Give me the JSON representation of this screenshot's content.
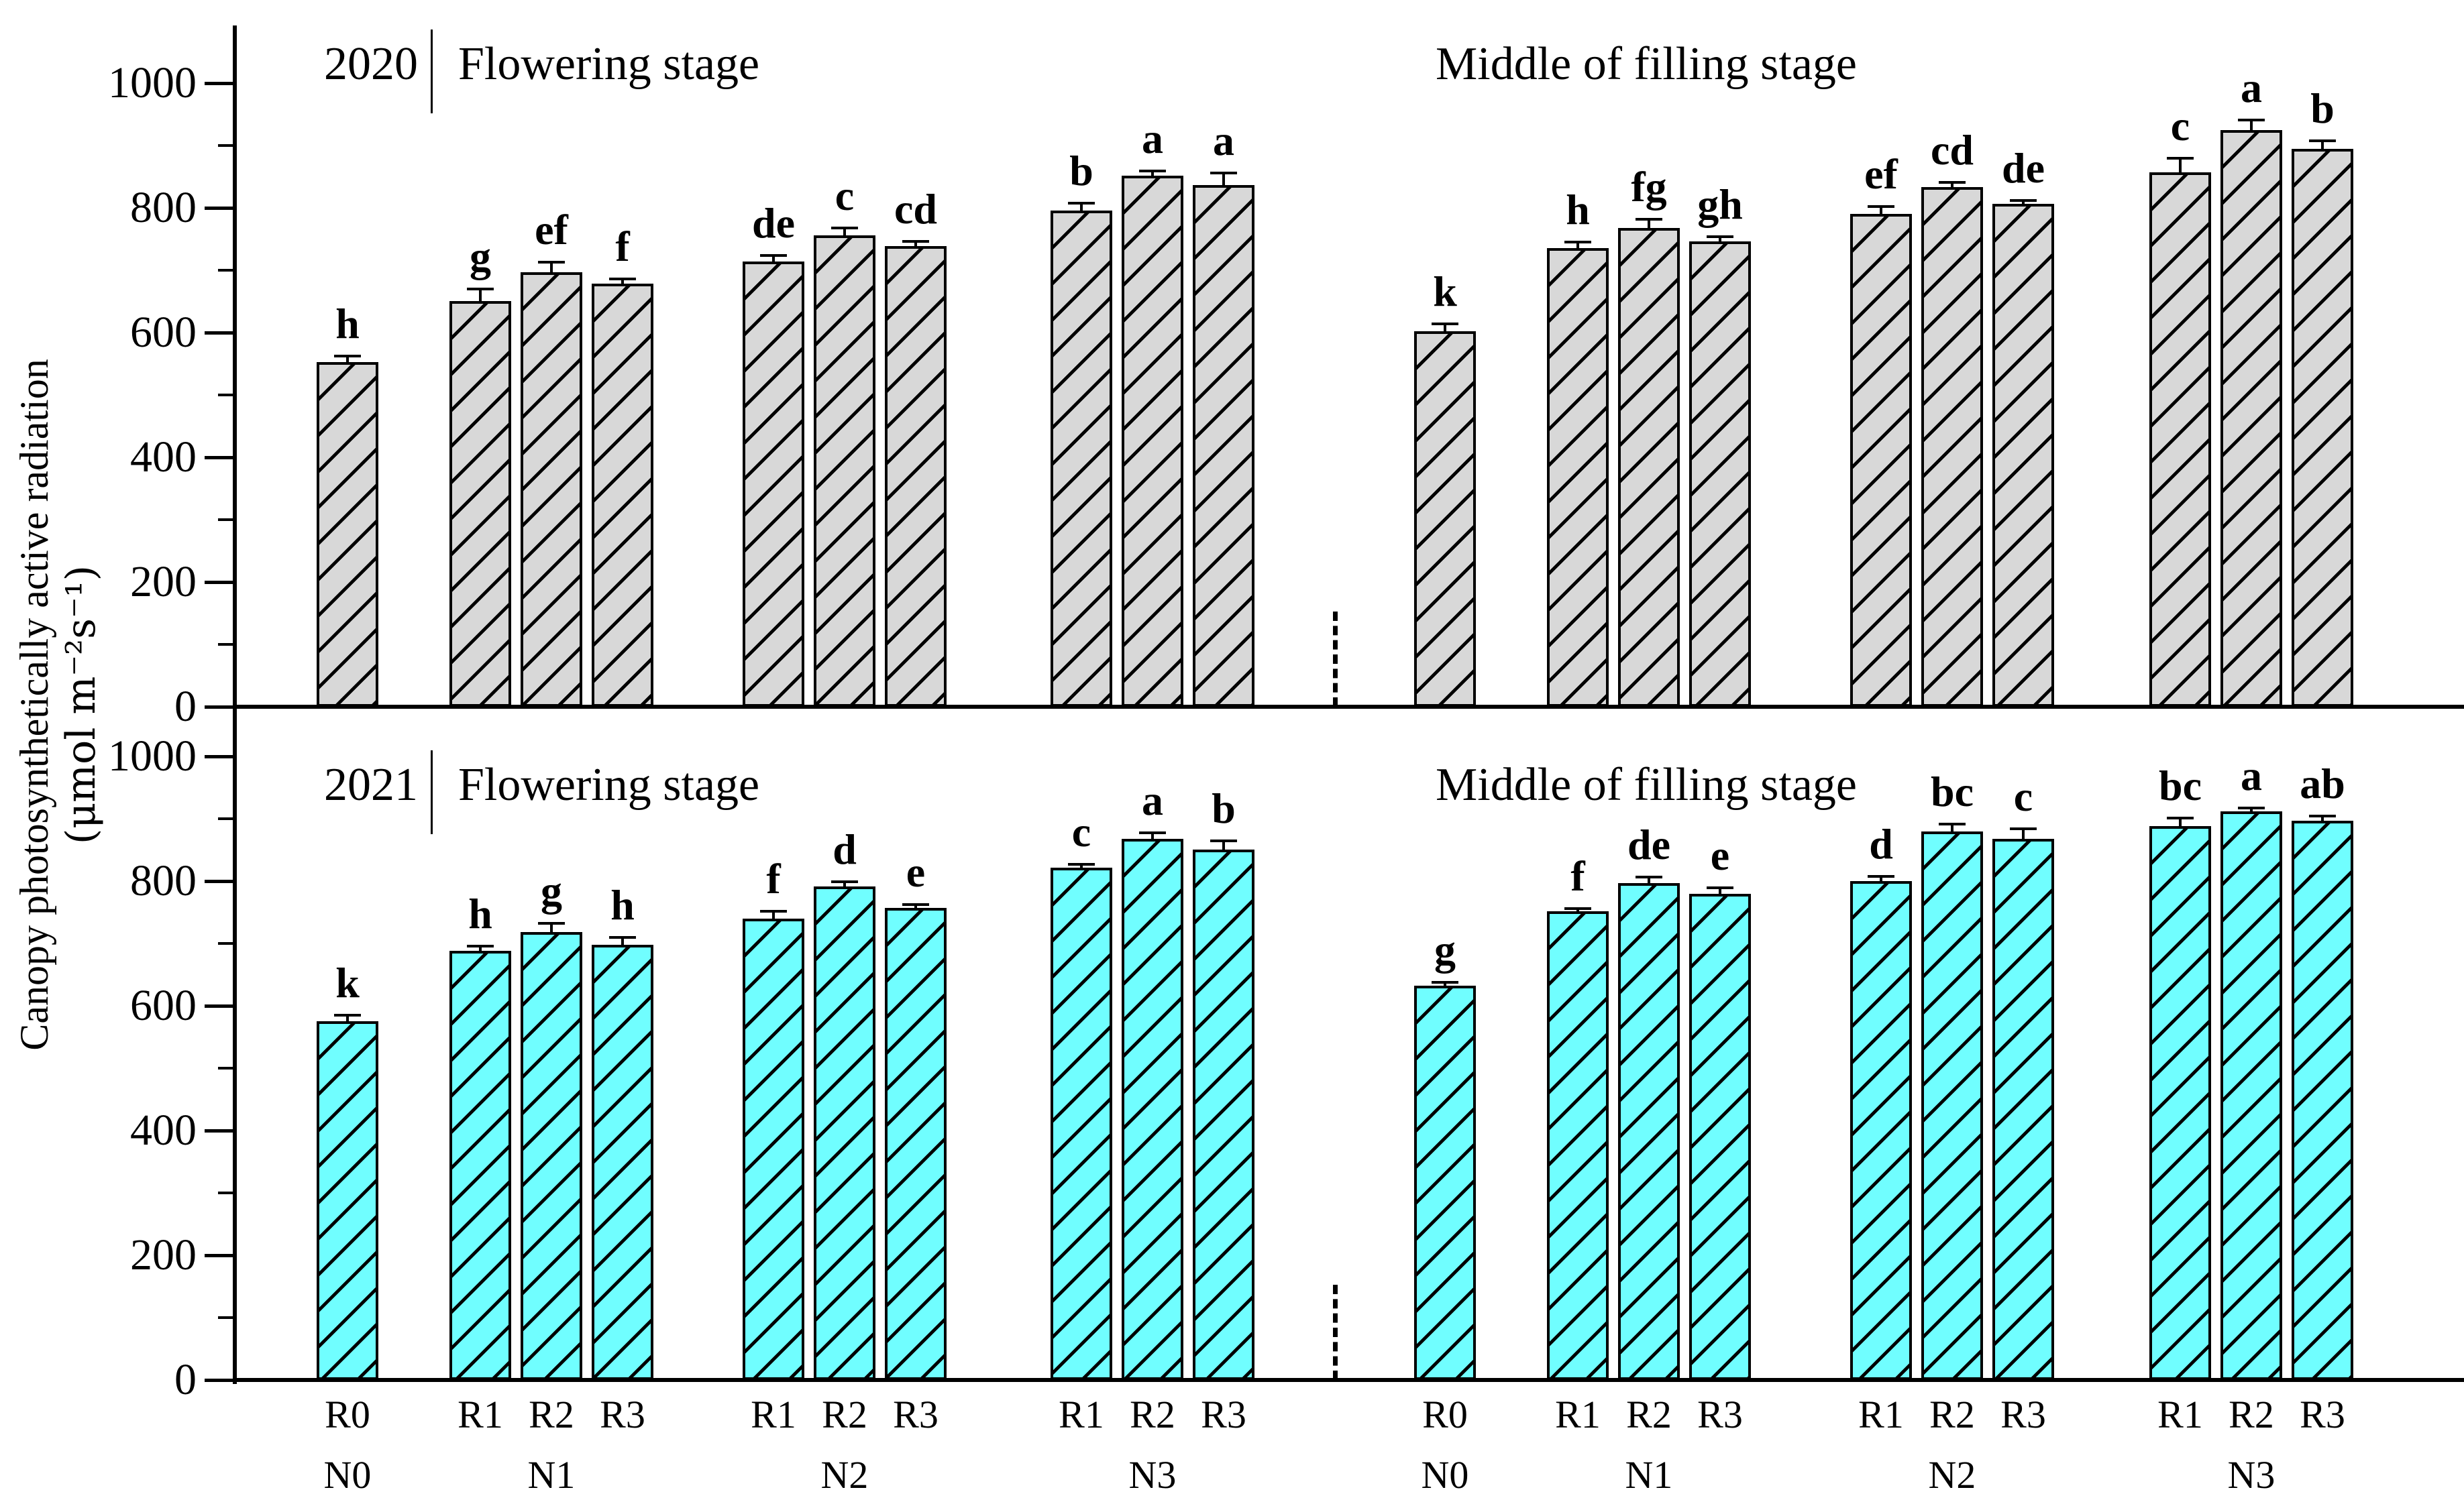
{
  "chart_data": {
    "type": "bar",
    "ylabel_line1": "Canopy photosynthetically active radiation",
    "ylabel_line2": "(μmol m⁻²s⁻¹)",
    "yticks": [
      0,
      200,
      400,
      600,
      800,
      1000
    ],
    "ylim": [
      0,
      1086
    ],
    "grid": false,
    "legend": "none",
    "panels": [
      {
        "year": "2020",
        "bar_color": "#d8d8d8",
        "sections": [
          {
            "title": "Flowering stage",
            "groups": [
              {
                "n": "N0",
                "bars": [
                  {
                    "r": "R0",
                    "value": 553,
                    "err": 12,
                    "letter": "h"
                  }
                ]
              },
              {
                "n": "N1",
                "bars": [
                  {
                    "r": "R1",
                    "value": 650,
                    "err": 22,
                    "letter": "g"
                  },
                  {
                    "r": "R2",
                    "value": 697,
                    "err": 18,
                    "letter": "ef"
                  },
                  {
                    "r": "R3",
                    "value": 678,
                    "err": 10,
                    "letter": "f"
                  }
                ]
              },
              {
                "n": "N2",
                "bars": [
                  {
                    "r": "R1",
                    "value": 714,
                    "err": 12,
                    "letter": "de"
                  },
                  {
                    "r": "R2",
                    "value": 756,
                    "err": 14,
                    "letter": "c"
                  },
                  {
                    "r": "R3",
                    "value": 739,
                    "err": 10,
                    "letter": "cd"
                  }
                ]
              },
              {
                "n": "N3",
                "bars": [
                  {
                    "r": "R1",
                    "value": 796,
                    "err": 14,
                    "letter": "b"
                  },
                  {
                    "r": "R2",
                    "value": 852,
                    "err": 10,
                    "letter": "a"
                  },
                  {
                    "r": "R3",
                    "value": 837,
                    "err": 22,
                    "letter": "a"
                  }
                ]
              }
            ]
          },
          {
            "title": "Middle of filling stage",
            "groups": [
              {
                "n": "N0",
                "bars": [
                  {
                    "r": "R0",
                    "value": 602,
                    "err": 14,
                    "letter": "k"
                  }
                ]
              },
              {
                "n": "N1",
                "bars": [
                  {
                    "r": "R1",
                    "value": 735,
                    "err": 12,
                    "letter": "h"
                  },
                  {
                    "r": "R2",
                    "value": 768,
                    "err": 16,
                    "letter": "fg"
                  },
                  {
                    "r": "R3",
                    "value": 746,
                    "err": 10,
                    "letter": "gh"
                  }
                ]
              },
              {
                "n": "N2",
                "bars": [
                  {
                    "r": "R1",
                    "value": 790,
                    "err": 14,
                    "letter": "ef"
                  },
                  {
                    "r": "R2",
                    "value": 833,
                    "err": 10,
                    "letter": "cd"
                  },
                  {
                    "r": "R3",
                    "value": 806,
                    "err": 8,
                    "letter": "de"
                  }
                ]
              },
              {
                "n": "N3",
                "bars": [
                  {
                    "r": "R1",
                    "value": 857,
                    "err": 25,
                    "letter": "c"
                  },
                  {
                    "r": "R2",
                    "value": 925,
                    "err": 18,
                    "letter": "a"
                  },
                  {
                    "r": "R3",
                    "value": 895,
                    "err": 15,
                    "letter": "b"
                  }
                ]
              }
            ]
          }
        ]
      },
      {
        "year": "2021",
        "bar_color": "#70feff",
        "sections": [
          {
            "title": "Flowering stage",
            "groups": [
              {
                "n": "N0",
                "bars": [
                  {
                    "r": "R0",
                    "value": 575,
                    "err": 12,
                    "letter": "k"
                  }
                ]
              },
              {
                "n": "N1",
                "bars": [
                  {
                    "r": "R1",
                    "value": 688,
                    "err": 10,
                    "letter": "h"
                  },
                  {
                    "r": "R2",
                    "value": 718,
                    "err": 16,
                    "letter": "g"
                  },
                  {
                    "r": "R3",
                    "value": 698,
                    "err": 14,
                    "letter": "h"
                  }
                ]
              },
              {
                "n": "N2",
                "bars": [
                  {
                    "r": "R1",
                    "value": 740,
                    "err": 14,
                    "letter": "f"
                  },
                  {
                    "r": "R2",
                    "value": 791,
                    "err": 10,
                    "letter": "d"
                  },
                  {
                    "r": "R3",
                    "value": 757,
                    "err": 8,
                    "letter": "e"
                  }
                ]
              },
              {
                "n": "N3",
                "bars": [
                  {
                    "r": "R1",
                    "value": 822,
                    "err": 8,
                    "letter": "c"
                  },
                  {
                    "r": "R2",
                    "value": 868,
                    "err": 12,
                    "letter": "a"
                  },
                  {
                    "r": "R3",
                    "value": 850,
                    "err": 16,
                    "letter": "b"
                  }
                ]
              }
            ]
          },
          {
            "title": "Middle of filling stage",
            "groups": [
              {
                "n": "N0",
                "bars": [
                  {
                    "r": "R0",
                    "value": 632,
                    "err": 8,
                    "letter": "g"
                  }
                ]
              },
              {
                "n": "N1",
                "bars": [
                  {
                    "r": "R1",
                    "value": 752,
                    "err": 6,
                    "letter": "f"
                  },
                  {
                    "r": "R2",
                    "value": 797,
                    "err": 12,
                    "letter": "de"
                  },
                  {
                    "r": "R3",
                    "value": 780,
                    "err": 12,
                    "letter": "e"
                  }
                ]
              },
              {
                "n": "N2",
                "bars": [
                  {
                    "r": "R1",
                    "value": 800,
                    "err": 10,
                    "letter": "d"
                  },
                  {
                    "r": "R2",
                    "value": 880,
                    "err": 14,
                    "letter": "bc"
                  },
                  {
                    "r": "R3",
                    "value": 868,
                    "err": 18,
                    "letter": "c"
                  }
                ]
              },
              {
                "n": "N3",
                "bars": [
                  {
                    "r": "R1",
                    "value": 888,
                    "err": 15,
                    "letter": "bc"
                  },
                  {
                    "r": "R2",
                    "value": 912,
                    "err": 8,
                    "letter": "a"
                  },
                  {
                    "r": "R3",
                    "value": 897,
                    "err": 10,
                    "letter": "ab"
                  }
                ]
              }
            ]
          }
        ]
      }
    ]
  }
}
